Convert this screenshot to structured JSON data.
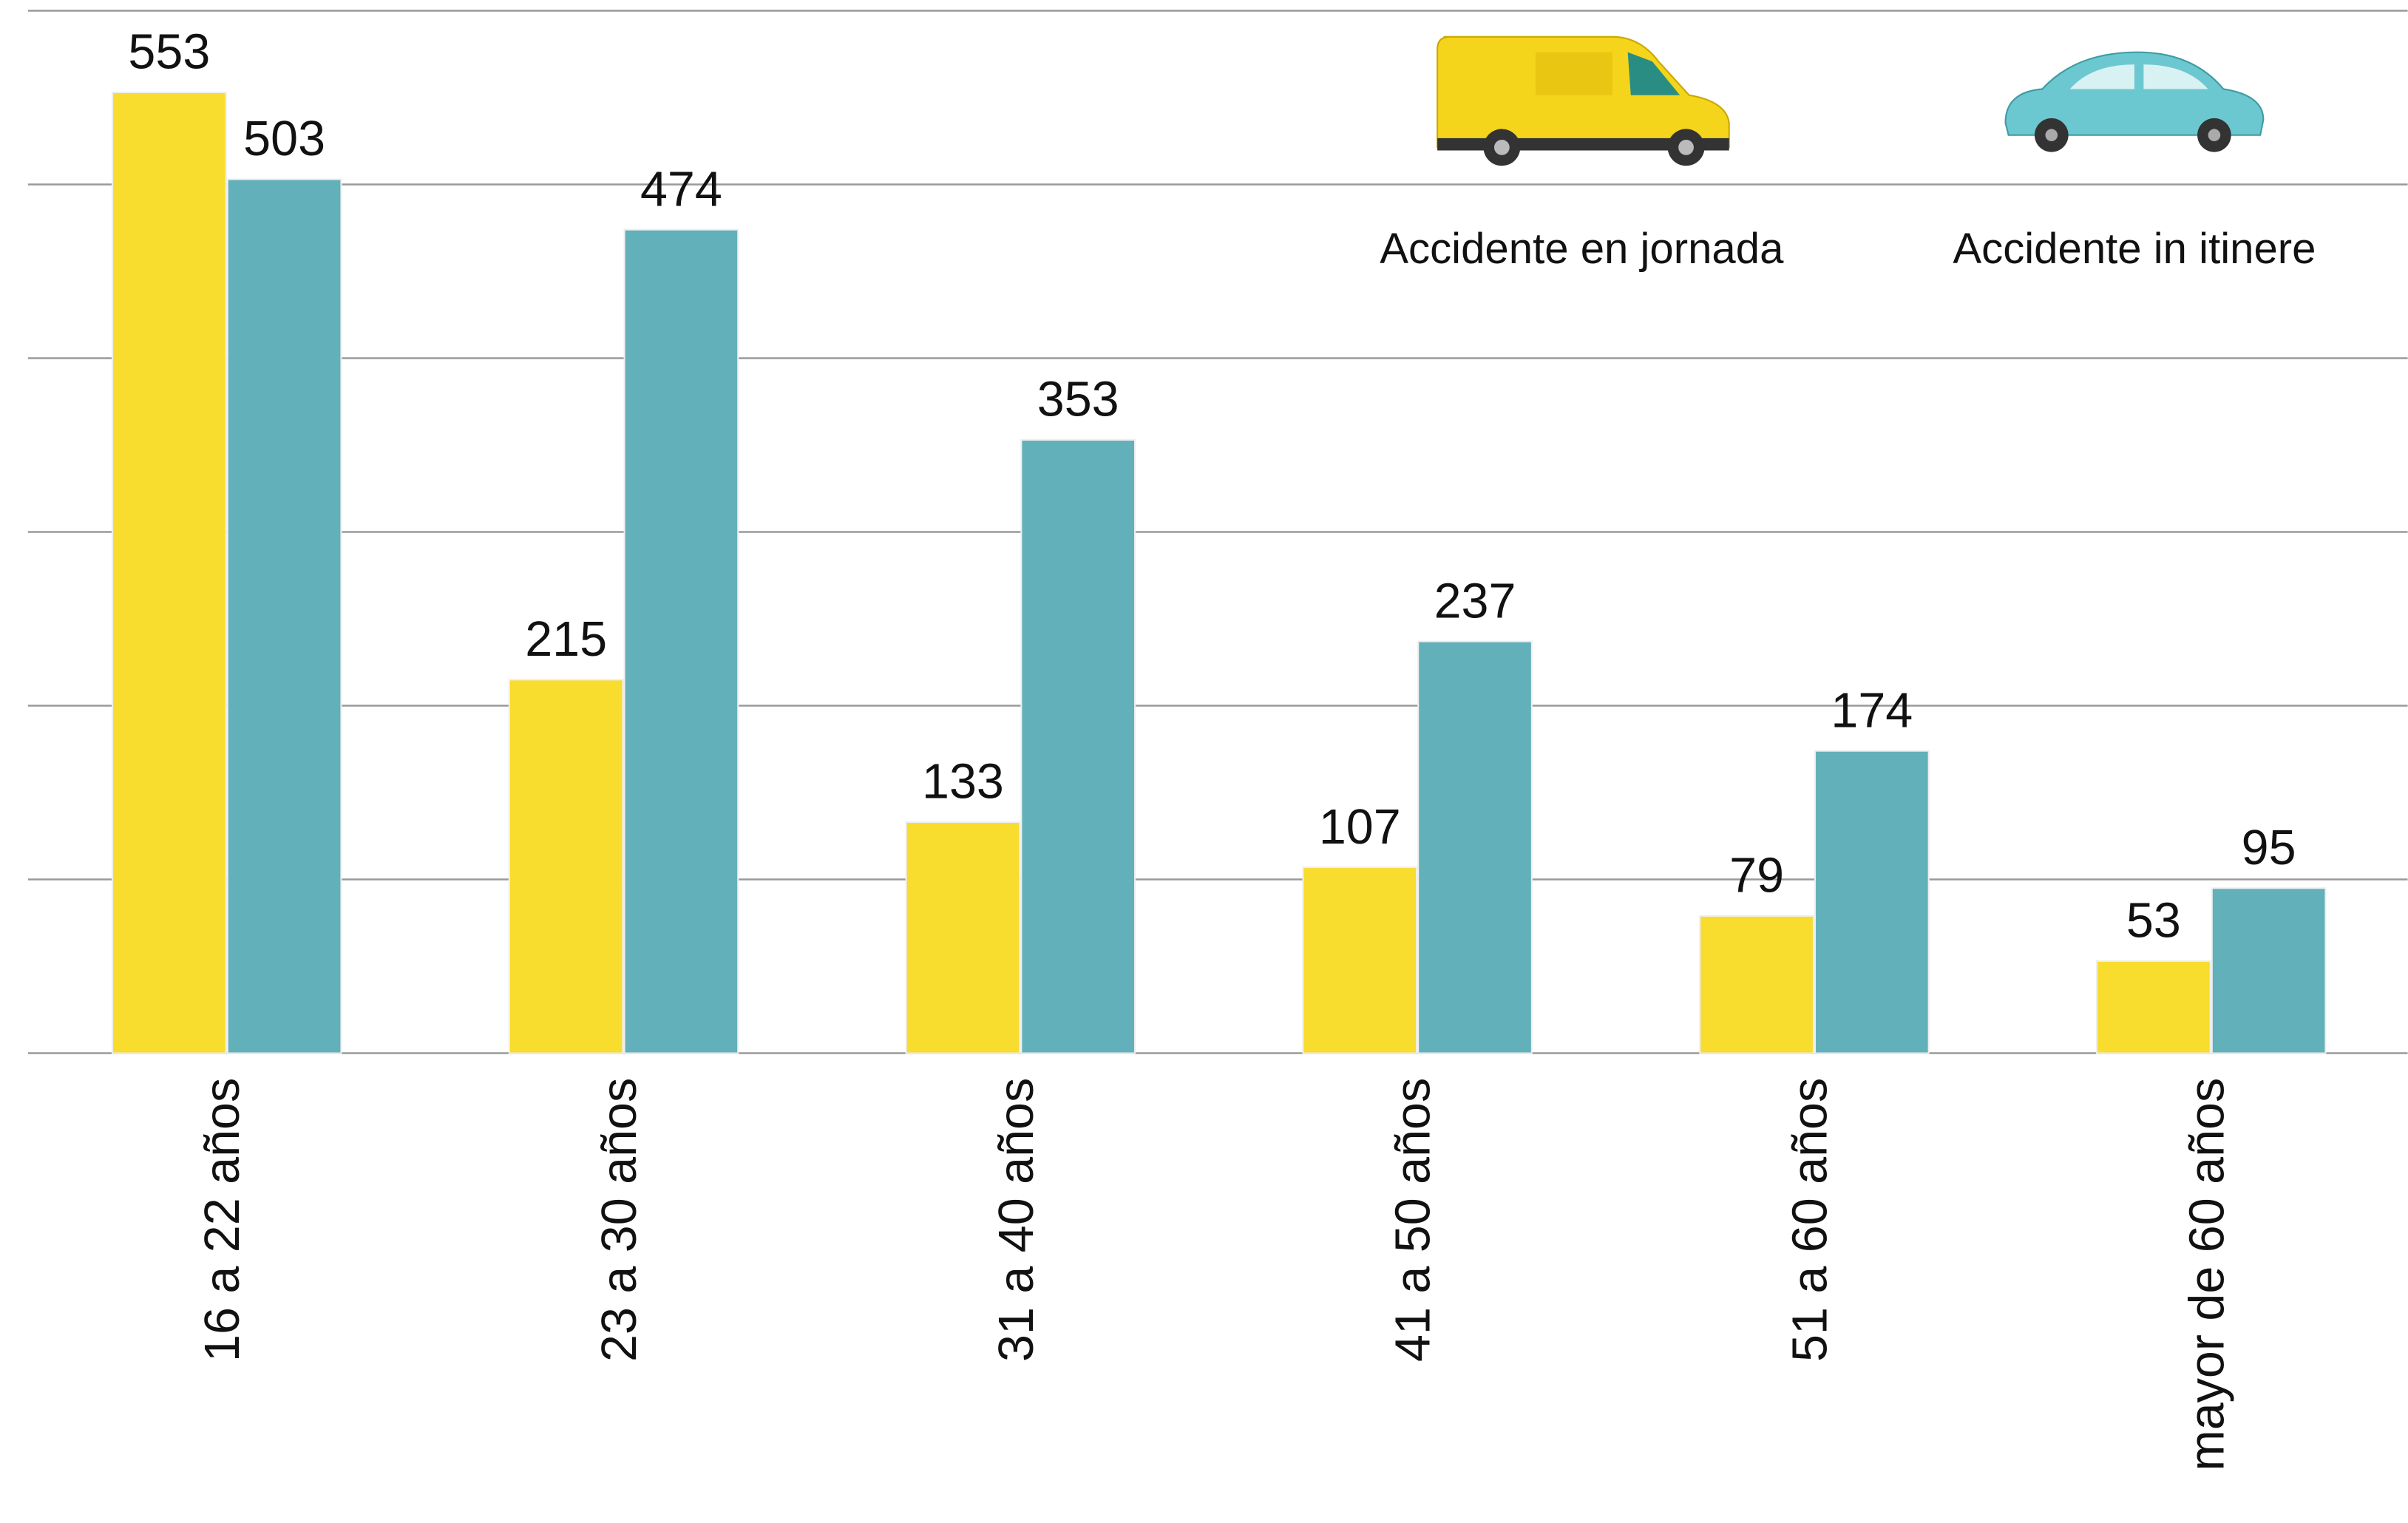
{
  "chart_data": {
    "type": "bar",
    "categories": [
      "16 a 22 años",
      "23 a 30 años",
      "31 a 40 años",
      "41 a 50 años",
      "51 a 60 años",
      "mayor de 60 años"
    ],
    "series": [
      {
        "name": "Accidente en jornada",
        "color": "#f8dc2e",
        "values": [
          553,
          215,
          133,
          107,
          79,
          53
        ]
      },
      {
        "name": "Accidente in itinere",
        "color": "#62b0b9",
        "values": [
          503,
          474,
          353,
          237,
          174,
          95
        ]
      }
    ],
    "ylim": [
      0,
      600
    ],
    "yticks": [
      0,
      100,
      200,
      300,
      400,
      500,
      600
    ],
    "grid": true
  }
}
